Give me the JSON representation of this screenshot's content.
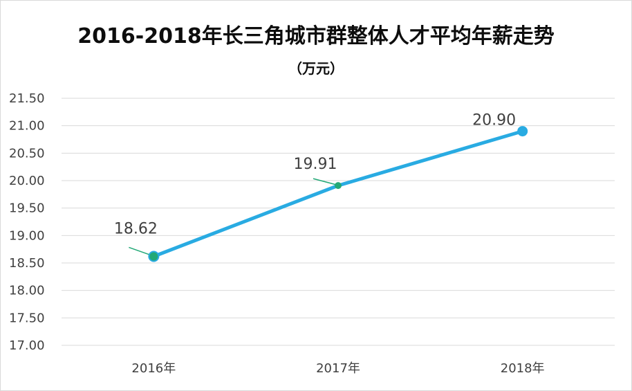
{
  "chart_data": {
    "type": "line",
    "title": "2016-2018年长三角城市群整体人才平均年薪走势",
    "subtitle": "（万元）",
    "categories": [
      "2016年",
      "2017年",
      "2018年"
    ],
    "series": [
      {
        "values": [
          18.62,
          19.91,
          20.9
        ],
        "labels": [
          "18.62",
          "19.91",
          "20.90"
        ],
        "color": "#29ABE2",
        "marker_color": "#22A876"
      }
    ],
    "y_ticks": [
      "17.00",
      "17.50",
      "18.00",
      "18.50",
      "19.00",
      "19.50",
      "20.00",
      "20.50",
      "21.00",
      "21.50"
    ],
    "ylim": [
      17.0,
      21.5
    ],
    "grid": true,
    "legend": "none",
    "colors": {
      "line": "#29ABE2",
      "marker": "#22A876",
      "leader": "#22A876",
      "grid": "#d9d9d9",
      "text": "#404040"
    }
  }
}
